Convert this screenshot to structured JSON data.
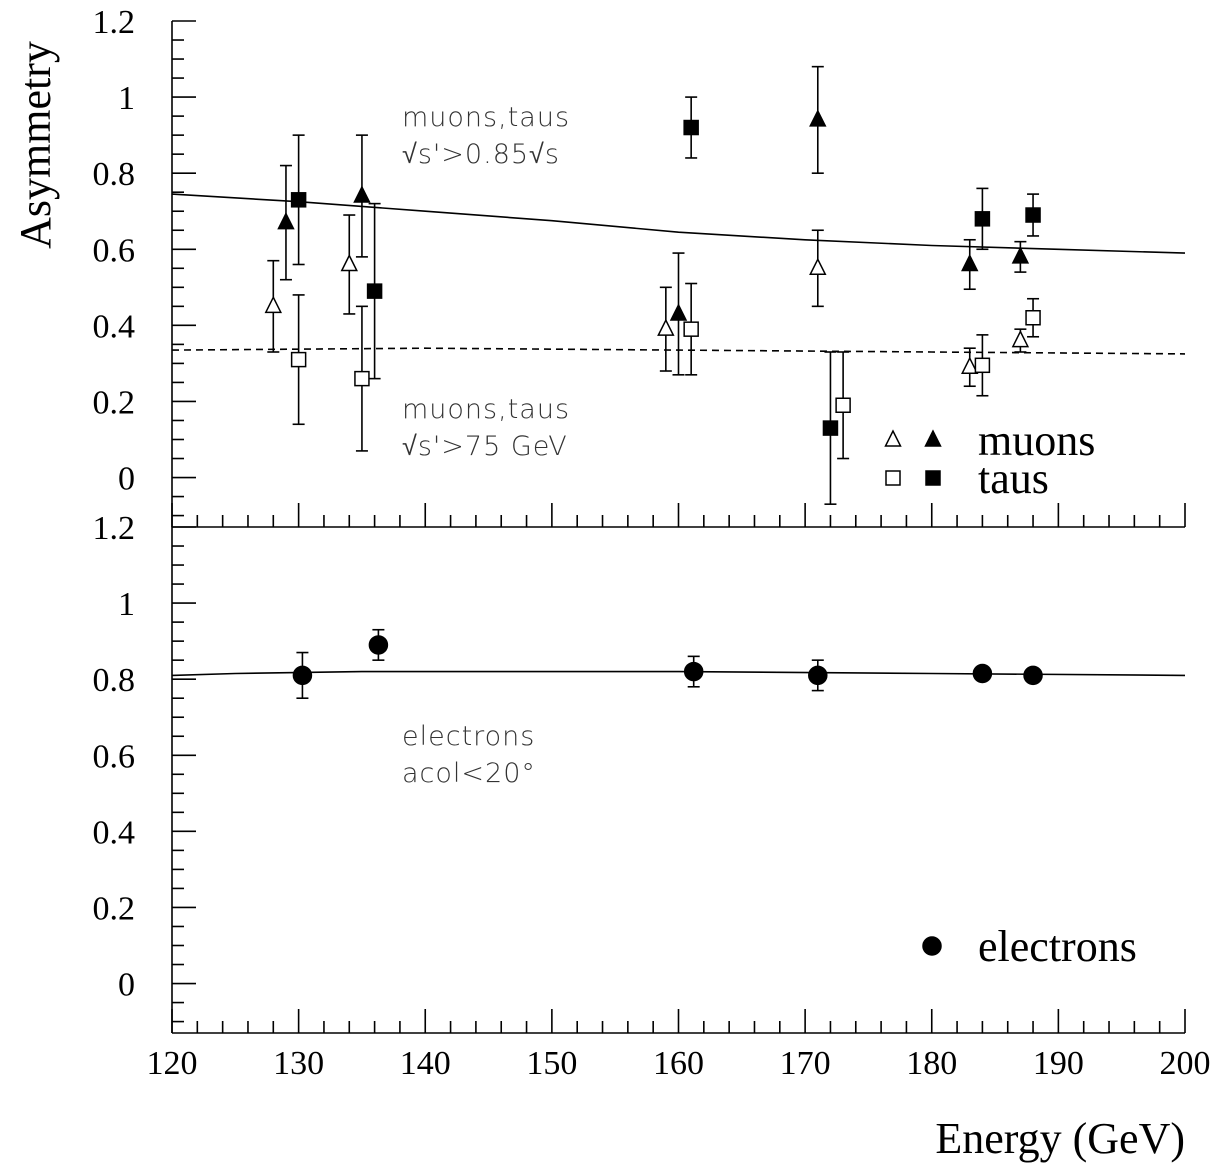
{
  "chart_data": [
    {
      "type": "scatter",
      "ylabel": "Asymmetry",
      "xlim": [
        120,
        200
      ],
      "xticks": [
        120,
        130,
        140,
        150,
        160,
        170,
        180,
        190,
        200
      ],
      "show_xtick_labels": false,
      "ylim": [
        -0.13,
        1.2
      ],
      "yticks": [
        0,
        0.2,
        0.4,
        0.6,
        0.8,
        1,
        1.2
      ],
      "annotations": [
        [
          "muons,taus",
          "√s'>0.85√s"
        ],
        [
          "muons,taus",
          "√s'>75 GeV"
        ]
      ],
      "series": [
        {
          "name": "muons",
          "marker": "triangle",
          "subsets": [
            {
              "filled": false,
              "x": [
                128,
                134,
                159,
                171,
                183,
                187
              ],
              "values": [
                0.45,
                0.56,
                0.39,
                0.55,
                0.29,
                0.36
              ],
              "errors": [
                0.12,
                0.13,
                0.11,
                0.1,
                0.05,
                0.03
              ]
            },
            {
              "filled": true,
              "x": [
                129,
                135,
                160,
                171,
                183,
                187
              ],
              "values": [
                0.67,
                0.74,
                0.43,
                0.94,
                0.56,
                0.58
              ],
              "errors": [
                0.15,
                0.16,
                0.16,
                0.14,
                0.065,
                0.04
              ]
            }
          ]
        },
        {
          "name": "taus",
          "marker": "square",
          "subsets": [
            {
              "filled": false,
              "x": [
                130,
                135,
                161,
                173,
                184,
                188
              ],
              "values": [
                0.31,
                0.26,
                0.39,
                0.19,
                0.295,
                0.42
              ],
              "errors": [
                0.17,
                0.19,
                0.12,
                0.14,
                0.08,
                0.05
              ]
            },
            {
              "filled": true,
              "x": [
                130,
                136,
                161,
                172,
                184,
                188
              ],
              "values": [
                0.73,
                0.49,
                0.92,
                0.13,
                0.68,
                0.69
              ],
              "errors": [
                0.17,
                0.23,
                0.08,
                0.2,
                0.08,
                0.055
              ]
            }
          ]
        }
      ],
      "curves": [
        {
          "dashed": false,
          "x": [
            120,
            130,
            140,
            150,
            160,
            170,
            180,
            190,
            200
          ],
          "values": [
            0.745,
            0.725,
            0.7,
            0.675,
            0.645,
            0.625,
            0.61,
            0.6,
            0.59
          ]
        },
        {
          "dashed": true,
          "x": [
            120,
            140,
            160,
            180,
            200
          ],
          "values": [
            0.335,
            0.34,
            0.335,
            0.33,
            0.325
          ]
        }
      ]
    },
    {
      "type": "scatter",
      "xlabel": "Energy (GeV)",
      "xlim": [
        120,
        200
      ],
      "xticks": [
        120,
        130,
        140,
        150,
        160,
        170,
        180,
        190,
        200
      ],
      "show_xtick_labels": true,
      "ylim": [
        -0.13,
        1.2
      ],
      "yticks": [
        0,
        0.2,
        0.4,
        0.6,
        0.8,
        1,
        1.2
      ],
      "annotations": [
        [
          "electrons",
          "acol<20°"
        ]
      ],
      "series": [
        {
          "name": "electrons",
          "marker": "circle",
          "subsets": [
            {
              "filled": true,
              "x": [
                130.3,
                136.3,
                161.2,
                171,
                184,
                188
              ],
              "values": [
                0.81,
                0.89,
                0.82,
                0.81,
                0.815,
                0.81
              ],
              "errors": [
                0.06,
                0.04,
                0.04,
                0.04,
                null,
                null
              ]
            }
          ]
        }
      ],
      "curves": [
        {
          "dashed": false,
          "x": [
            120,
            125,
            135,
            160,
            180,
            200
          ],
          "values": [
            0.81,
            0.815,
            0.82,
            0.82,
            0.815,
            0.81
          ]
        }
      ]
    }
  ]
}
